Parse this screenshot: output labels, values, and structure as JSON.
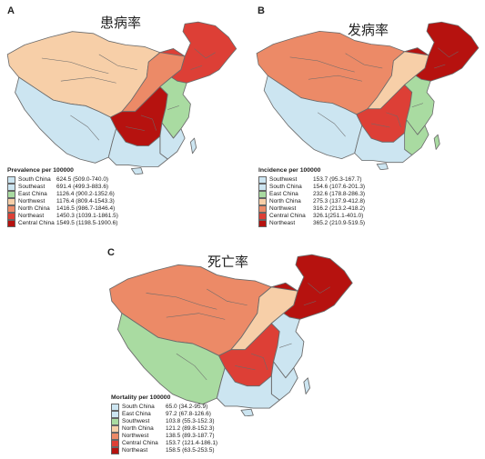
{
  "colors": {
    "c1": "#cce5f1",
    "c2": "#a9dba1",
    "c3": "#f7cfa8",
    "c4": "#ec8a67",
    "c5": "#dd3f36",
    "c6": "#b6120f",
    "border": "#6b6b6b"
  },
  "panels": [
    {
      "letter": "A",
      "title": "患病率",
      "legend_title": "Prevalence per 100000",
      "regions": [
        {
          "name": "South China",
          "value": "624.5 (509.0-740.0)"
        },
        {
          "name": "Southeast",
          "value": "691.4 (499.3-883.6)"
        },
        {
          "name": "East China",
          "value": "1126.4 (900.2-1352.6)"
        },
        {
          "name": "Northwest",
          "value": "1176.4 (809.4-1543.3)"
        },
        {
          "name": "North China",
          "value": "1416.5 (986.7-1846.4)"
        },
        {
          "name": "Northeast",
          "value": "1450.3 (1039.1-1861.5)"
        },
        {
          "name": "Central China",
          "value": "1549.5 (1198.5-1900.6)"
        }
      ]
    },
    {
      "letter": "B",
      "title": "发病率",
      "legend_title": "Incidence per 100000",
      "regions": [
        {
          "name": "Southwest",
          "value": "153.7 (95.3-167.7)"
        },
        {
          "name": "South China",
          "value": "154.6 (107.6-201.3)"
        },
        {
          "name": "East China",
          "value": "232.6 (178.8-286.3)"
        },
        {
          "name": "North China",
          "value": "275.3 (137.9-412.8)"
        },
        {
          "name": "Northwest",
          "value": "316.2 (213.2-418.2)"
        },
        {
          "name": "Central China",
          "value": "326.1(251.1-401.0)"
        },
        {
          "name": "Northeast",
          "value": "365.2 (210.9-519.5)"
        }
      ]
    },
    {
      "letter": "C",
      "title": "死亡率",
      "legend_title": "Mortality per 100000",
      "regions": [
        {
          "name": "South China",
          "value": "65.0 (34.2-95.9)"
        },
        {
          "name": "East China",
          "value": "97.2 (67.8-126.6)"
        },
        {
          "name": "Southwest",
          "value": "103.8 (55.3-152.3)"
        },
        {
          "name": "North China",
          "value": "121.2 (89.8-152.3)"
        },
        {
          "name": "Northwest",
          "value": "138.5 (89.3-187.7)"
        },
        {
          "name": "Central China",
          "value": "153.7 (121.4-186.1)"
        },
        {
          "name": "Northeast",
          "value": "158.5 (63.5-253.5)"
        }
      ]
    }
  ]
}
